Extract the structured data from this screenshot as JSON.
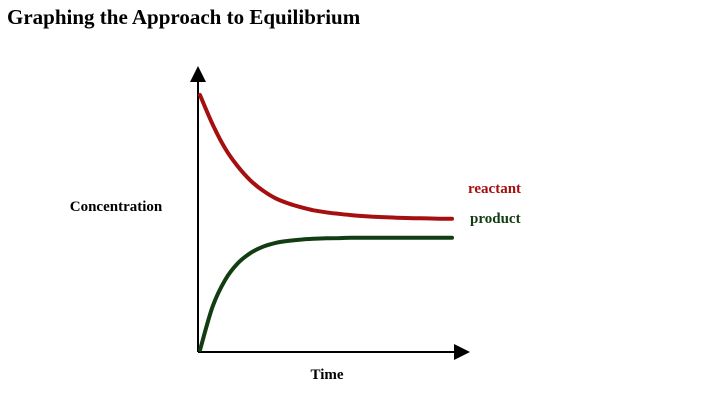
{
  "page": {
    "title": "Graphing the Approach to Equilibrium"
  },
  "chart_data": {
    "type": "line",
    "title": "Graphing the Approach to Equilibrium",
    "xlabel": "Time",
    "ylabel": "Concentration",
    "xlim": [
      0,
      10
    ],
    "ylim": [
      0,
      10
    ],
    "grid": false,
    "legend": "inline-right",
    "x_ticks": [],
    "y_ticks": [],
    "series": [
      {
        "name": "reactant",
        "color": "#a50f0f",
        "x": [
          0,
          0.5,
          1,
          1.5,
          2,
          2.5,
          3,
          3.5,
          4,
          4.5,
          5,
          5.5,
          6,
          6.5,
          7,
          7.5,
          8,
          8.5,
          9,
          9.5,
          10
        ],
        "y": [
          10,
          8.85,
          7.9,
          7.2,
          6.65,
          6.25,
          5.95,
          5.75,
          5.6,
          5.48,
          5.4,
          5.34,
          5.29,
          5.25,
          5.22,
          5.2,
          5.18,
          5.17,
          5.16,
          5.15,
          5.15
        ]
      },
      {
        "name": "product",
        "color": "#123d12",
        "x": [
          0,
          0.5,
          1,
          1.5,
          2,
          2.5,
          3,
          3.5,
          4,
          4.5,
          5,
          5.5,
          6,
          6.5,
          7,
          7.5,
          8,
          8.5,
          9,
          9.5,
          10
        ],
        "y": [
          0,
          1.7,
          2.75,
          3.4,
          3.8,
          4.05,
          4.2,
          4.28,
          4.33,
          4.36,
          4.38,
          4.39,
          4.4,
          4.4,
          4.4,
          4.4,
          4.4,
          4.4,
          4.4,
          4.4,
          4.4
        ]
      }
    ]
  }
}
